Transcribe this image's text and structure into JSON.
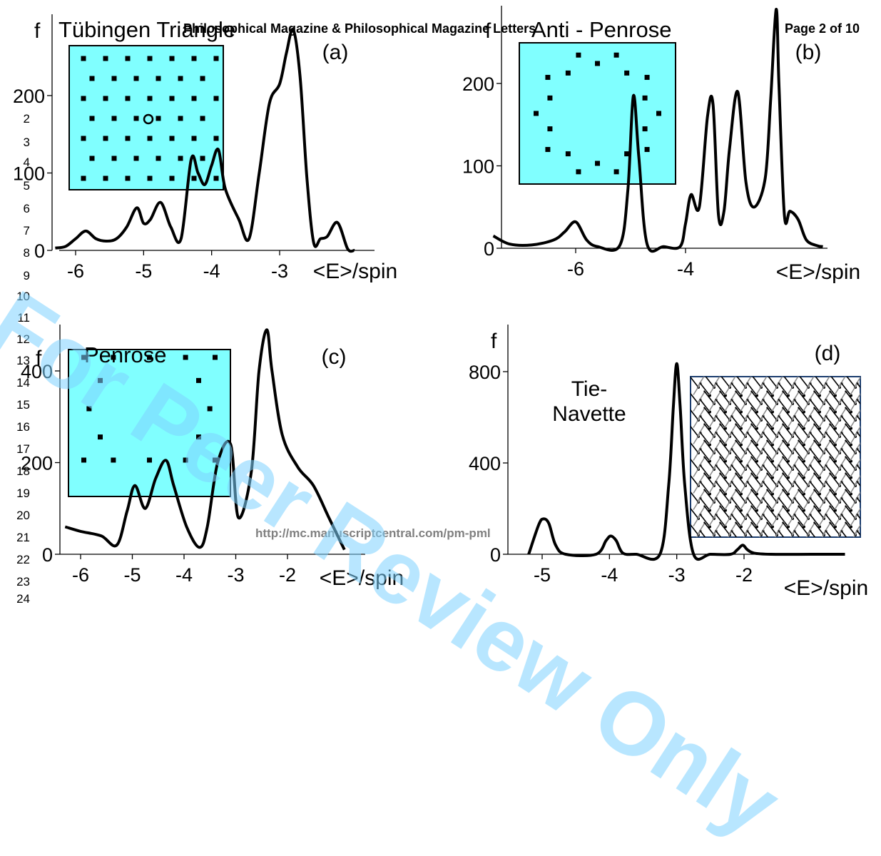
{
  "header": {
    "journal": "Philosophical Magazine & Philosophical Magazine Letters",
    "page": "Page 2 of 10"
  },
  "footer_url": "http://mc.manuscriptcentral.com/pm-pml",
  "watermark": "For Peer Review Only",
  "line_numbers": [
    "2",
    "3",
    "4",
    "5",
    "6",
    "7",
    "8",
    "9",
    "10",
    "11",
    "12",
    "13",
    "14",
    "15",
    "16",
    "17",
    "18",
    "19",
    "20",
    "21",
    "22",
    "23",
    "24"
  ],
  "colors": {
    "inset_fill": "#80ffff",
    "curve": "#000000",
    "watermark": "#7fd3ff",
    "arrow_black": "#000000",
    "arrow_gray": "#8c8c8c"
  },
  "chart_data": [
    {
      "type": "line",
      "panel": "(a)",
      "title": "Tübingen Triangle",
      "ylabel": "f",
      "xlabel": "<E>/spin",
      "xlim": [
        -6.3,
        -1.9
      ],
      "ylim": [
        0,
        280
      ],
      "xticks": [
        -6,
        -5,
        -4,
        -3
      ],
      "yticks": [
        0,
        100,
        200
      ],
      "x": [
        -6.3,
        -6.15,
        -6.0,
        -5.85,
        -5.7,
        -5.55,
        -5.4,
        -5.25,
        -5.1,
        -5.0,
        -4.9,
        -4.75,
        -4.6,
        -4.45,
        -4.3,
        -4.2,
        -4.1,
        -4.0,
        -3.9,
        -3.8,
        -3.6,
        -3.45,
        -3.3,
        -3.15,
        -3.0,
        -2.9,
        -2.8,
        -2.7,
        -2.6,
        -2.5,
        -2.4,
        -2.3,
        -2.15,
        -2.0,
        -1.9
      ],
      "y": [
        3,
        5,
        15,
        25,
        15,
        12,
        15,
        30,
        55,
        35,
        40,
        62,
        30,
        15,
        118,
        100,
        85,
        110,
        130,
        80,
        40,
        15,
        100,
        190,
        215,
        255,
        285,
        225,
        95,
        10,
        15,
        18,
        36,
        2,
        0
      ],
      "inset": "spin-structure-factor-dots"
    },
    {
      "type": "line",
      "panel": "(b)",
      "title": "Anti - Penrose",
      "ylabel": "f",
      "xlabel": "<E>/spin",
      "xlim": [
        -7.5,
        -1.5
      ],
      "ylim": [
        0,
        300
      ],
      "xticks": [
        -6,
        -4
      ],
      "yticks": [
        0,
        100,
        200
      ],
      "x": [
        -7.5,
        -7.2,
        -6.8,
        -6.4,
        -6.2,
        -6.0,
        -5.8,
        -5.6,
        -5.2,
        -5.05,
        -4.95,
        -4.85,
        -4.7,
        -4.4,
        -4.1,
        -4.0,
        -3.9,
        -3.75,
        -3.6,
        -3.5,
        -3.4,
        -3.3,
        -3.2,
        -3.05,
        -2.9,
        -2.75,
        -2.55,
        -2.45,
        -2.35,
        -2.3,
        -2.2,
        -2.1,
        -1.95,
        -1.8,
        -1.6,
        -1.5
      ],
      "y": [
        15,
        5,
        4,
        10,
        20,
        32,
        10,
        2,
        3,
        70,
        185,
        110,
        5,
        2,
        2,
        30,
        65,
        50,
        160,
        175,
        40,
        45,
        120,
        190,
        80,
        50,
        85,
        180,
        290,
        200,
        40,
        45,
        35,
        10,
        3,
        2
      ],
      "inset": "spin-structure-factor-dots"
    },
    {
      "type": "line",
      "panel": "(c)",
      "title": "Penrose",
      "ylabel": "f",
      "xlabel": "<E>/spin",
      "xlim": [
        -6.3,
        -0.9
      ],
      "ylim": [
        0,
        500
      ],
      "xticks": [
        -6,
        -5,
        -4,
        -3,
        -2
      ],
      "yticks": [
        0,
        200,
        400
      ],
      "x": [
        -6.3,
        -6.0,
        -5.6,
        -5.3,
        -5.1,
        -4.95,
        -4.75,
        -4.55,
        -4.35,
        -4.2,
        -3.95,
        -3.7,
        -3.55,
        -3.35,
        -3.1,
        -2.95,
        -2.7,
        -2.55,
        -2.4,
        -2.3,
        -2.1,
        -1.8,
        -1.5,
        -1.2,
        -0.9
      ],
      "y": [
        60,
        50,
        40,
        20,
        95,
        150,
        100,
        165,
        205,
        150,
        60,
        15,
        60,
        200,
        240,
        80,
        180,
        400,
        490,
        400,
        260,
        190,
        150,
        80,
        10
      ],
      "inset": "spin-structure-factor-dots"
    },
    {
      "type": "line",
      "panel": "(d)",
      "title": "Tie-Navette",
      "ylabel": "f",
      "xlabel": "<E>/spin",
      "xlim": [
        -5.5,
        -0.2
      ],
      "ylim": [
        0,
        950
      ],
      "xticks": [
        -5,
        -4,
        -3,
        -2
      ],
      "yticks": [
        0,
        400,
        800
      ],
      "x": [
        -5.2,
        -5.05,
        -4.98,
        -4.9,
        -4.8,
        -4.65,
        -4.2,
        -4.05,
        -3.98,
        -3.9,
        -3.8,
        -3.6,
        -3.25,
        -3.12,
        -3.05,
        -3.0,
        -2.95,
        -2.88,
        -2.75,
        -2.5,
        -2.2,
        -2.1,
        -2.02,
        -1.95,
        -1.85,
        -1.6,
        -1.0,
        -0.5
      ],
      "y": [
        0,
        130,
        155,
        135,
        40,
        0,
        0,
        60,
        80,
        60,
        5,
        0,
        0,
        300,
        650,
        835,
        650,
        300,
        0,
        0,
        0,
        20,
        40,
        20,
        5,
        0,
        0,
        0
      ],
      "inset": "arrow-field"
    }
  ]
}
